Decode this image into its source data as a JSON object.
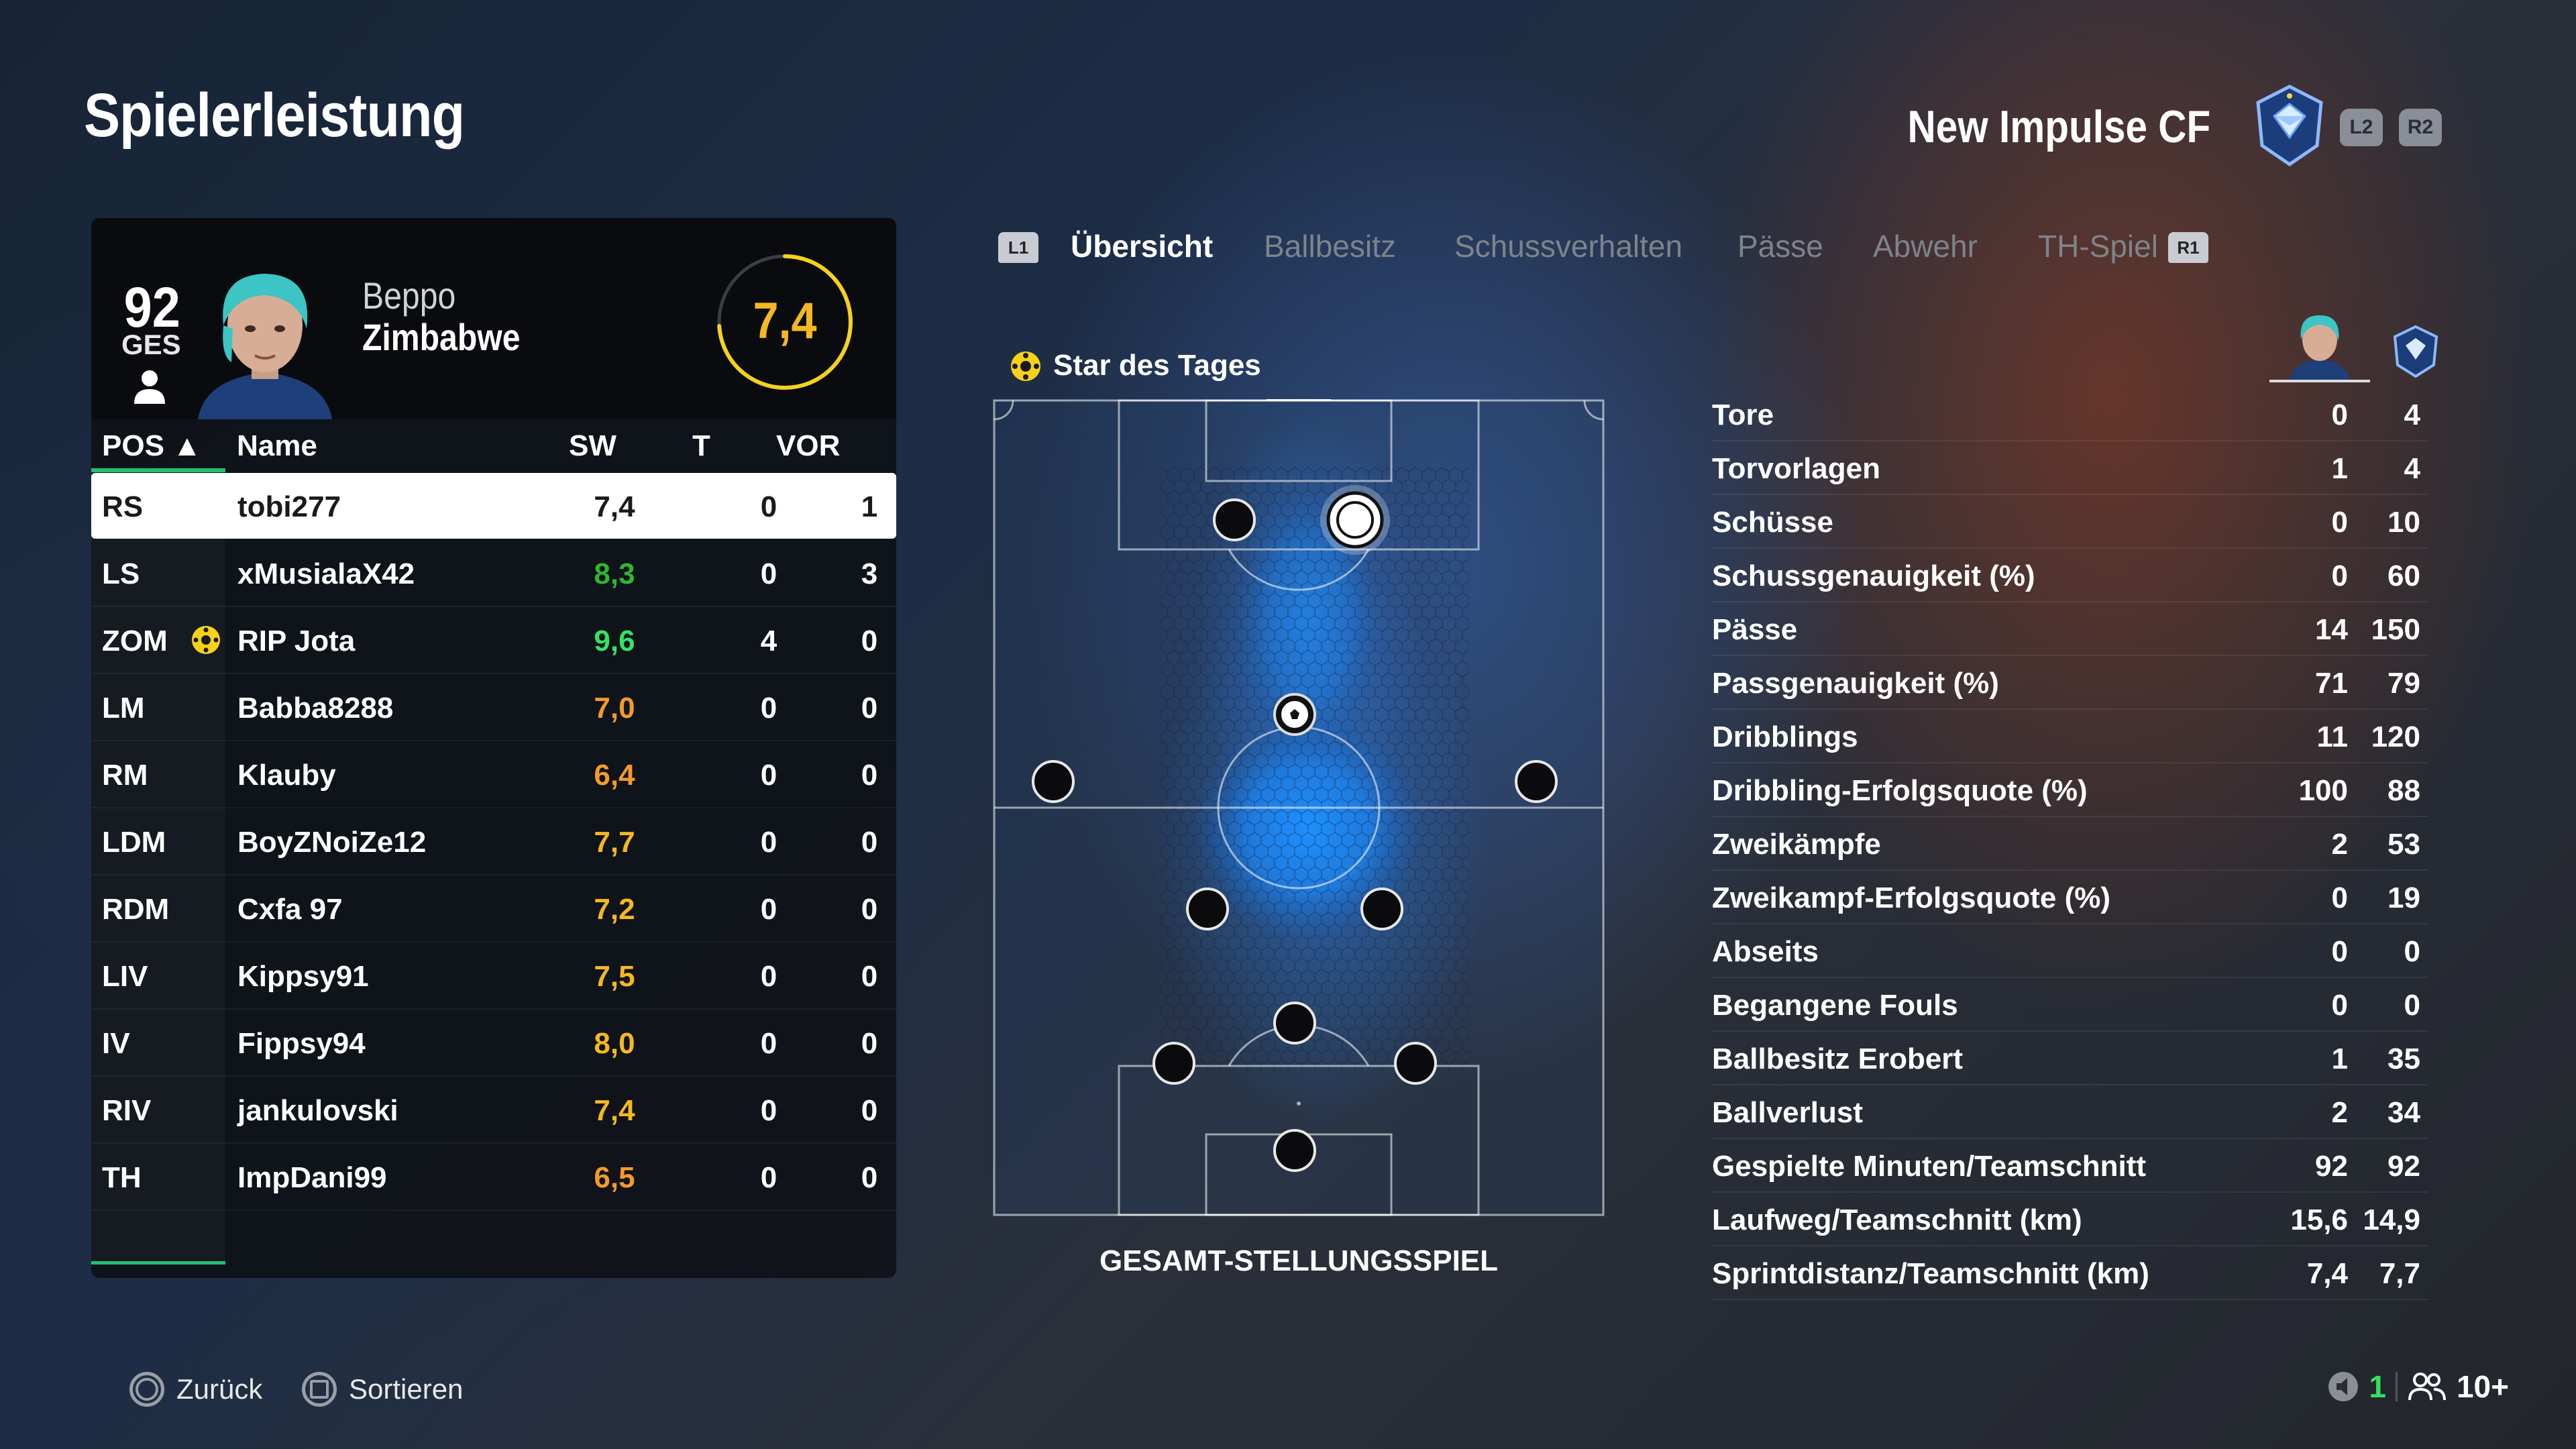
{
  "page_title": "Spielerleistung",
  "club": {
    "name": "New Impulse CF",
    "l2": "L2",
    "r2": "R2"
  },
  "player_card": {
    "ovr": "92",
    "ovr_label": "GES",
    "first_name": "Beppo",
    "last_name": "Zimbabwe",
    "rating": "7,4",
    "rating_fraction": 0.74
  },
  "table": {
    "headers": {
      "pos": "POS ▲",
      "name": "Name",
      "sw": "SW",
      "t": "T",
      "vor": "VOR"
    },
    "rows": [
      {
        "pos": "RS",
        "name": "tobi277",
        "sw": "7,4",
        "t": "0",
        "vor": "1",
        "color": "#1a1a1a",
        "selected": true
      },
      {
        "pos": "LS",
        "name": "xMusialaX42",
        "sw": "8,3",
        "t": "0",
        "vor": "3",
        "color": "#2fb52f"
      },
      {
        "pos": "ZOM",
        "name": "RIP Jota",
        "sw": "9,6",
        "t": "4",
        "vor": "0",
        "color": "#36e060",
        "star": true
      },
      {
        "pos": "LM",
        "name": "Babba8288",
        "sw": "7,0",
        "t": "0",
        "vor": "0",
        "color": "#f39a2a"
      },
      {
        "pos": "RM",
        "name": "Klauby",
        "sw": "6,4",
        "t": "0",
        "vor": "0",
        "color": "#f39a2a"
      },
      {
        "pos": "LDM",
        "name": "BoyZNoiZe12",
        "sw": "7,7",
        "t": "0",
        "vor": "0",
        "color": "#f5b820"
      },
      {
        "pos": "RDM",
        "name": "Cxfa 97",
        "sw": "7,2",
        "t": "0",
        "vor": "0",
        "color": "#f5b820"
      },
      {
        "pos": "LIV",
        "name": "Kippsy91",
        "sw": "7,5",
        "t": "0",
        "vor": "0",
        "color": "#f5b820"
      },
      {
        "pos": "IV",
        "name": "Fippsy94",
        "sw": "8,0",
        "t": "0",
        "vor": "0",
        "color": "#f5b820"
      },
      {
        "pos": "RIV",
        "name": "jankulovski",
        "sw": "7,4",
        "t": "0",
        "vor": "0",
        "color": "#f5b820"
      },
      {
        "pos": "TH",
        "name": "ImpDani99",
        "sw": "6,5",
        "t": "0",
        "vor": "0",
        "color": "#f39a2a"
      }
    ]
  },
  "tabs": {
    "l1": "L1",
    "r1": "R1",
    "items": [
      "Übersicht",
      "Ballbesitz",
      "Schussverhalten",
      "Pässe",
      "Abwehr",
      "TH-Spiel"
    ]
  },
  "star_of_day": "Star des Tages",
  "pitch_caption": "GESAMT-STELLUNGSSPIEL",
  "stats": [
    {
      "label": "Tore",
      "player": "0",
      "team": "4"
    },
    {
      "label": "Torvorlagen",
      "player": "1",
      "team": "4"
    },
    {
      "label": "Schüsse",
      "player": "0",
      "team": "10"
    },
    {
      "label": "Schussgenauigkeit (%)",
      "player": "0",
      "team": "60"
    },
    {
      "label": "Pässe",
      "player": "14",
      "team": "150"
    },
    {
      "label": "Passgenauigkeit (%)",
      "player": "71",
      "team": "79"
    },
    {
      "label": "Dribblings",
      "player": "11",
      "team": "120"
    },
    {
      "label": "Dribbling-Erfolgsquote (%)",
      "player": "100",
      "team": "88"
    },
    {
      "label": "Zweikämpfe",
      "player": "2",
      "team": "53"
    },
    {
      "label": "Zweikampf-Erfolgsquote (%)",
      "player": "0",
      "team": "19"
    },
    {
      "label": "Abseits",
      "player": "0",
      "team": "0"
    },
    {
      "label": "Begangene Fouls",
      "player": "0",
      "team": "0"
    },
    {
      "label": "Ballbesitz Erobert",
      "player": "1",
      "team": "35"
    },
    {
      "label": "Ballverlust",
      "player": "2",
      "team": "34"
    },
    {
      "label": "Gespielte Minuten/Teamschnitt",
      "player": "92",
      "team": "92"
    },
    {
      "label": "Laufweg/Teamschnitt (km)",
      "player": "15,6",
      "team": "14,9"
    },
    {
      "label": "Sprintdistanz/Teamschnitt (km)",
      "player": "7,4",
      "team": "7,7"
    }
  ],
  "footer": {
    "back": "Zurück",
    "sort": "Sortieren",
    "speaker_count": "1",
    "players_count": "10+"
  },
  "colors": {
    "accent": "#20c070",
    "rating": "#f5b820",
    "heat": "#1e90ff"
  }
}
